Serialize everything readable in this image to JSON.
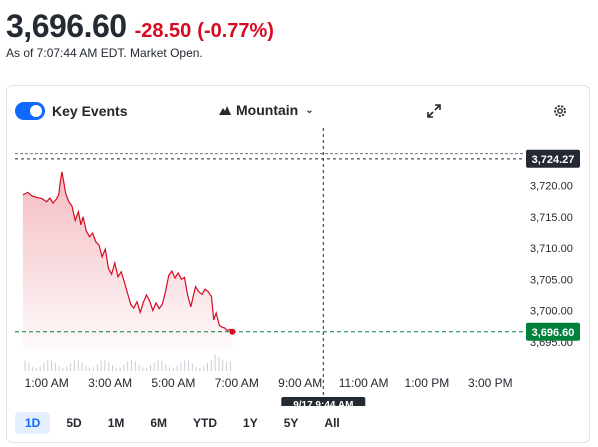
{
  "quote": {
    "price": "3,696.60",
    "change": "-28.50",
    "change_pct": "(-0.77%)",
    "as_of": "As of 7:07:44 AM EDT. Market Open."
  },
  "toolbar": {
    "key_events_label": "Key Events",
    "key_events_on": true,
    "chart_type_label": "Mountain"
  },
  "colors": {
    "negative": "#d60a22",
    "accent": "#0f69ff",
    "current_price_badge": "#00813b",
    "crosshair_badge": "#232a31"
  },
  "chart_data": {
    "type": "area",
    "x_labels": [
      "1:00 AM",
      "3:00 AM",
      "5:00 AM",
      "7:00 AM",
      "9:00 AM",
      "11:00 AM",
      "1:00 PM",
      "3:00 PM"
    ],
    "y_ticks": [
      "3,720.00",
      "3,715.00",
      "3,710.00",
      "3,705.00",
      "3,700.00",
      "3,695.00"
    ],
    "ylim": [
      3694,
      3726
    ],
    "series": [
      {
        "values": [
          [
            0.25,
            3718.5
          ],
          [
            0.4,
            3718.9
          ],
          [
            0.55,
            3718.3
          ],
          [
            0.7,
            3718.1
          ],
          [
            0.85,
            3717.9
          ],
          [
            1.0,
            3717.4
          ],
          [
            1.1,
            3718.0
          ],
          [
            1.2,
            3717.2
          ],
          [
            1.3,
            3717.8
          ],
          [
            1.38,
            3718.5
          ],
          [
            1.43,
            3720.6
          ],
          [
            1.48,
            3722.2
          ],
          [
            1.53,
            3720.8
          ],
          [
            1.6,
            3718.7
          ],
          [
            1.7,
            3717.4
          ],
          [
            1.8,
            3716.7
          ],
          [
            1.9,
            3714.4
          ],
          [
            2.0,
            3715.8
          ],
          [
            2.08,
            3713.7
          ],
          [
            2.15,
            3715.0
          ],
          [
            2.25,
            3712.7
          ],
          [
            2.35,
            3711.8
          ],
          [
            2.45,
            3712.4
          ],
          [
            2.55,
            3711.0
          ],
          [
            2.65,
            3710.5
          ],
          [
            2.75,
            3708.6
          ],
          [
            2.85,
            3709.8
          ],
          [
            2.95,
            3706.7
          ],
          [
            3.05,
            3705.8
          ],
          [
            3.15,
            3707.6
          ],
          [
            3.25,
            3705.4
          ],
          [
            3.35,
            3706.2
          ],
          [
            3.45,
            3704.6
          ],
          [
            3.55,
            3702.8
          ],
          [
            3.65,
            3701.0
          ],
          [
            3.75,
            3700.4
          ],
          [
            3.85,
            3701.4
          ],
          [
            3.95,
            3699.7
          ],
          [
            4.05,
            3701.3
          ],
          [
            4.15,
            3702.5
          ],
          [
            4.25,
            3701.5
          ],
          [
            4.35,
            3700.0
          ],
          [
            4.45,
            3701.2
          ],
          [
            4.55,
            3700.3
          ],
          [
            4.65,
            3701.0
          ],
          [
            4.75,
            3703.0
          ],
          [
            4.85,
            3705.6
          ],
          [
            4.95,
            3706.3
          ],
          [
            5.05,
            3705.2
          ],
          [
            5.15,
            3706.0
          ],
          [
            5.25,
            3705.0
          ],
          [
            5.35,
            3705.3
          ],
          [
            5.45,
            3702.4
          ],
          [
            5.55,
            3700.6
          ],
          [
            5.62,
            3702.2
          ],
          [
            5.7,
            3703.8
          ],
          [
            5.8,
            3703.0
          ],
          [
            5.9,
            3702.6
          ],
          [
            6.0,
            3703.4
          ],
          [
            6.1,
            3703.0
          ],
          [
            6.2,
            3702.2
          ],
          [
            6.27,
            3698.5
          ],
          [
            6.35,
            3699.6
          ],
          [
            6.45,
            3697.6
          ],
          [
            6.55,
            3697.3
          ],
          [
            6.62,
            3697.2
          ],
          [
            6.7,
            3696.8
          ],
          [
            6.78,
            3697.0
          ],
          [
            6.86,
            3696.6
          ]
        ]
      }
    ],
    "previous_close": 3725.1,
    "current_price": 3696.6,
    "crosshair": {
      "price": "3,724.27",
      "time": "9/17 9:44 AM",
      "price_value": 3724.27,
      "x_hours": 9.73
    },
    "grid": false,
    "volume": true
  },
  "ranges": [
    "1D",
    "5D",
    "1M",
    "6M",
    "YTD",
    "1Y",
    "5Y",
    "All"
  ],
  "active_range": "1D"
}
